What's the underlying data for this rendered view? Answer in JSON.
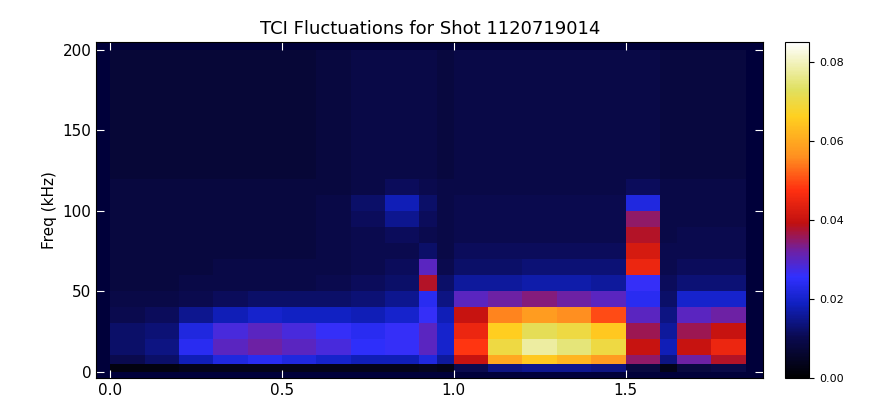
{
  "chart_data": {
    "type": "heatmap",
    "title": "TCI Fluctuations for Shot 1120719014",
    "y_label": "Freq (kHz)",
    "xlim": [
      -0.04,
      1.9
    ],
    "xticks": [
      {
        "value": 0.0,
        "label": "0.0"
      },
      0.5,
      {
        "value": 1.0,
        "label": "1.0"
      },
      1.5
    ],
    "ylim": [
      -4,
      205
    ],
    "yticks": [
      0,
      50,
      100,
      150,
      200
    ],
    "x_edges": [
      0,
      0.1,
      0.2,
      0.3,
      0.4,
      0.5,
      0.6,
      0.7,
      0.8,
      0.9,
      0.95,
      1.0,
      1.1,
      1.2,
      1.3,
      1.4,
      1.5,
      1.6,
      1.65,
      1.75,
      1.85
    ],
    "y_edges": [
      0,
      5,
      10,
      20,
      30,
      40,
      50,
      60,
      70,
      80,
      90,
      100,
      110,
      120,
      140,
      160,
      180,
      200
    ],
    "cells_by_x": [
      [
        0.002,
        0.01,
        0.012,
        0.012,
        0.01,
        0.009,
        0.008,
        0.008,
        0.008,
        0.008,
        0.008,
        0.008,
        0.008,
        0.007,
        0.007,
        0.007,
        0.007
      ],
      [
        0.002,
        0.012,
        0.014,
        0.013,
        0.011,
        0.009,
        0.008,
        0.008,
        0.008,
        0.008,
        0.008,
        0.008,
        0.008,
        0.007,
        0.007,
        0.007,
        0.007
      ],
      [
        0.003,
        0.018,
        0.024,
        0.022,
        0.015,
        0.01,
        0.009,
        0.008,
        0.008,
        0.008,
        0.008,
        0.008,
        0.008,
        0.007,
        0.007,
        0.007,
        0.007
      ],
      [
        0.003,
        0.022,
        0.03,
        0.028,
        0.018,
        0.011,
        0.009,
        0.009,
        0.008,
        0.008,
        0.008,
        0.008,
        0.008,
        0.007,
        0.007,
        0.007,
        0.007
      ],
      [
        0.003,
        0.024,
        0.032,
        0.03,
        0.02,
        0.012,
        0.009,
        0.009,
        0.008,
        0.008,
        0.008,
        0.008,
        0.008,
        0.007,
        0.007,
        0.007,
        0.007
      ],
      [
        0.003,
        0.022,
        0.03,
        0.028,
        0.019,
        0.012,
        0.009,
        0.009,
        0.008,
        0.008,
        0.008,
        0.008,
        0.008,
        0.007,
        0.007,
        0.007,
        0.007
      ],
      [
        0.003,
        0.02,
        0.028,
        0.026,
        0.019,
        0.012,
        0.01,
        0.009,
        0.009,
        0.009,
        0.009,
        0.009,
        0.008,
        0.008,
        0.008,
        0.008,
        0.008
      ],
      [
        0.003,
        0.018,
        0.025,
        0.024,
        0.018,
        0.013,
        0.011,
        0.01,
        0.01,
        0.01,
        0.011,
        0.012,
        0.009,
        0.009,
        0.009,
        0.009,
        0.009
      ],
      [
        0.003,
        0.018,
        0.026,
        0.026,
        0.02,
        0.015,
        0.012,
        0.011,
        0.01,
        0.011,
        0.015,
        0.018,
        0.011,
        0.009,
        0.009,
        0.009,
        0.009
      ],
      [
        0.004,
        0.022,
        0.03,
        0.03,
        0.026,
        0.024,
        0.038,
        0.03,
        0.012,
        0.01,
        0.011,
        0.012,
        0.01,
        0.009,
        0.009,
        0.009,
        0.009
      ],
      [
        0.003,
        0.016,
        0.02,
        0.02,
        0.018,
        0.014,
        0.012,
        0.01,
        0.009,
        0.009,
        0.009,
        0.009,
        0.009,
        0.008,
        0.008,
        0.008,
        0.008
      ],
      [
        0.01,
        0.04,
        0.048,
        0.045,
        0.04,
        0.03,
        0.016,
        0.012,
        0.011,
        0.01,
        0.01,
        0.01,
        0.009,
        0.009,
        0.009,
        0.009,
        0.009
      ],
      [
        0.014,
        0.06,
        0.07,
        0.066,
        0.055,
        0.032,
        0.016,
        0.012,
        0.011,
        0.01,
        0.01,
        0.01,
        0.009,
        0.009,
        0.009,
        0.009,
        0.009
      ],
      [
        0.015,
        0.065,
        0.078,
        0.072,
        0.058,
        0.034,
        0.017,
        0.013,
        0.011,
        0.01,
        0.01,
        0.01,
        0.009,
        0.009,
        0.009,
        0.009,
        0.009
      ],
      [
        0.015,
        0.062,
        0.075,
        0.07,
        0.056,
        0.032,
        0.017,
        0.013,
        0.011,
        0.01,
        0.01,
        0.01,
        0.009,
        0.009,
        0.009,
        0.009,
        0.009
      ],
      [
        0.014,
        0.058,
        0.07,
        0.065,
        0.05,
        0.03,
        0.016,
        0.013,
        0.011,
        0.01,
        0.01,
        0.01,
        0.009,
        0.009,
        0.009,
        0.009,
        0.009
      ],
      [
        0.008,
        0.035,
        0.04,
        0.036,
        0.03,
        0.024,
        0.026,
        0.045,
        0.042,
        0.038,
        0.035,
        0.022,
        0.011,
        0.009,
        0.009,
        0.009,
        0.009
      ],
      [
        0.003,
        0.014,
        0.018,
        0.016,
        0.014,
        0.012,
        0.011,
        0.01,
        0.01,
        0.009,
        0.009,
        0.009,
        0.009,
        0.008,
        0.008,
        0.008,
        0.008
      ],
      [
        0.008,
        0.032,
        0.04,
        0.036,
        0.03,
        0.02,
        0.013,
        0.011,
        0.01,
        0.01,
        0.009,
        0.009,
        0.009,
        0.008,
        0.008,
        0.008,
        0.008
      ],
      [
        0.009,
        0.038,
        0.045,
        0.04,
        0.032,
        0.02,
        0.013,
        0.011,
        0.01,
        0.01,
        0.009,
        0.009,
        0.009,
        0.008,
        0.008,
        0.008,
        0.008
      ]
    ],
    "colorbar_range": [
      0,
      0.085
    ],
    "colorbar_ticks": [
      {
        "value": 0,
        "label": "0.00"
      },
      {
        "value": 0.02,
        "label": "0.02"
      },
      {
        "value": 0.04,
        "label": "0.04"
      },
      {
        "value": 0.06,
        "label": "0.06"
      },
      {
        "value": 0.08,
        "label": "0.08"
      }
    ]
  }
}
